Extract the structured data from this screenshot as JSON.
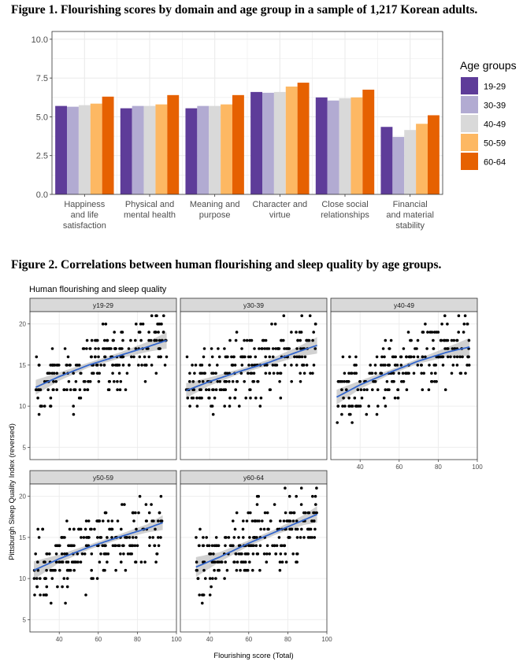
{
  "figure1": {
    "title": "Figure 1. Flourishing scores by domain and age group in a sample of 1,217 Korean adults."
  },
  "figure2": {
    "title": "Figure 2. Correlations between human flourishing and sleep quality by age groups."
  },
  "colors": {
    "19-29": "#5e3c99",
    "30-39": "#b2abd2",
    "40-49": "#d9d9d9",
    "50-59": "#fdb863",
    "60-64": "#e66101",
    "trend_line": "#3366cc",
    "ribbon": "#bdbdbd",
    "strip": "#d9d9d9",
    "grid": "#ebebeb"
  },
  "chart_data": [
    {
      "type": "bar",
      "legend_title": "Age groups",
      "legend_position": "right",
      "grid": true,
      "ylim": [
        0,
        10.5
      ],
      "y_ticks": [
        "0.0",
        "2.5",
        "5.0",
        "7.5",
        "10.0"
      ],
      "categories": [
        [
          "Happiness",
          "and life",
          "satisfaction"
        ],
        [
          "Physical and",
          "mental health"
        ],
        [
          "Meaning and",
          "purpose"
        ],
        [
          "Character and",
          "virtue"
        ],
        [
          "Close social",
          "relationships"
        ],
        [
          "Financial",
          "and material",
          "stability"
        ]
      ],
      "series": [
        {
          "name": "19-29",
          "values": [
            5.7,
            5.55,
            5.55,
            6.6,
            6.25,
            4.35
          ]
        },
        {
          "name": "30-39",
          "values": [
            5.65,
            5.7,
            5.7,
            6.55,
            6.05,
            3.7
          ]
        },
        {
          "name": "40-49",
          "values": [
            5.75,
            5.7,
            5.7,
            6.6,
            6.2,
            4.15
          ]
        },
        {
          "name": "50-59",
          "values": [
            5.85,
            5.8,
            5.8,
            6.95,
            6.25,
            4.55
          ]
        },
        {
          "name": "60-64",
          "values": [
            6.3,
            6.4,
            6.4,
            7.2,
            6.75,
            5.1
          ]
        }
      ]
    },
    {
      "type": "scatter",
      "title": "Human flourishing and sleep quality",
      "xlabel": "Flourishing score (Total)",
      "ylabel": "Pittsburgh Sleep Quality Index (reversed)",
      "xlim": [
        25,
        100
      ],
      "ylim": [
        3.5,
        21.5
      ],
      "x_ticks": [
        "40",
        "60",
        "80",
        "100"
      ],
      "y_ticks": [
        "5",
        "10",
        "15",
        "20"
      ],
      "grid": true,
      "panels": [
        {
          "strip": "y19-29",
          "fit": [
            [
              28,
              12.3
            ],
            [
              40,
              13.6
            ],
            [
              55,
              15.0
            ],
            [
              70,
              16.1
            ],
            [
              85,
              17.2
            ],
            [
              95,
              18.0
            ]
          ],
          "band": [
            0.9,
            0.5,
            0.3,
            0.35,
            0.6,
            1.0
          ]
        },
        {
          "strip": "y30-39",
          "fit": [
            [
              28,
              11.9
            ],
            [
              40,
              13.0
            ],
            [
              55,
              14.2
            ],
            [
              70,
              15.3
            ],
            [
              85,
              16.6
            ],
            [
              95,
              17.4
            ]
          ],
          "band": [
            0.9,
            0.5,
            0.3,
            0.35,
            0.6,
            1.0
          ]
        },
        {
          "strip": "y40-49",
          "fit": [
            [
              28,
              11.1
            ],
            [
              40,
              12.6
            ],
            [
              55,
              14.1
            ],
            [
              70,
              15.5
            ],
            [
              85,
              16.6
            ],
            [
              96,
              17.2
            ]
          ],
          "band": [
            0.9,
            0.5,
            0.3,
            0.3,
            0.6,
            1.1
          ]
        },
        {
          "strip": "y50-59",
          "fit": [
            [
              27,
              11.0
            ],
            [
              40,
              12.4
            ],
            [
              55,
              13.8
            ],
            [
              70,
              15.0
            ],
            [
              85,
              16.1
            ],
            [
              93,
              16.8
            ]
          ],
          "band": [
            1.1,
            0.5,
            0.3,
            0.3,
            0.5,
            0.9
          ]
        },
        {
          "strip": "y60-64",
          "fit": [
            [
              33,
              11.4
            ],
            [
              45,
              12.6
            ],
            [
              60,
              14.3
            ],
            [
              75,
              15.8
            ],
            [
              88,
              17.1
            ],
            [
              95,
              17.8
            ]
          ],
          "band": [
            1.2,
            0.6,
            0.35,
            0.35,
            0.6,
            1.0
          ]
        }
      ]
    }
  ]
}
